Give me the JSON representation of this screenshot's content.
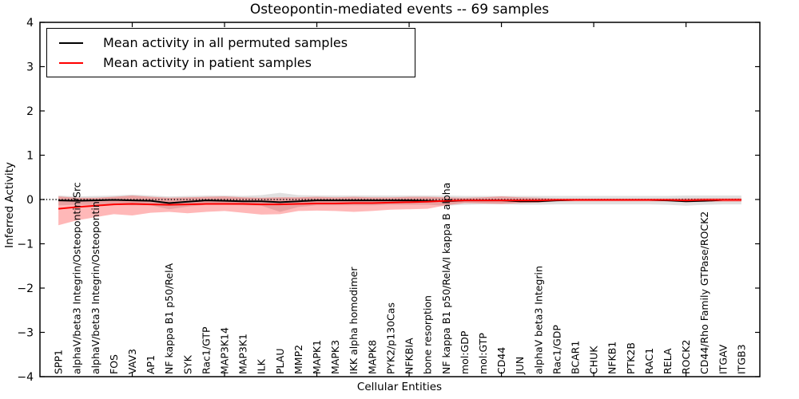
{
  "chart_data": {
    "type": "line",
    "title": "Osteopontin-mediated events -- 69 samples",
    "xlabel": "Cellular Entities",
    "ylabel": "Inferred Activity",
    "ylim": [
      -4,
      4
    ],
    "yticks": [
      -4,
      -3,
      -2,
      -1,
      0,
      1,
      2,
      3,
      4
    ],
    "ytick_labels": [
      "−4",
      "−3",
      "−2",
      "−1",
      "0",
      "1",
      "2",
      "3",
      "4"
    ],
    "xticks_every": 5,
    "grid": false,
    "legend_position": "upper left",
    "background_color": "#ffffff",
    "axis_color": "#000000",
    "zero_line": {
      "y": 0,
      "color": "#000000",
      "style": "dotted"
    },
    "categories": [
      "SPP1",
      "alphaV/beta3 Integrin/Osteopontin/Src",
      "alphaV/beta3 Integrin/Osteopontin",
      "FOS",
      "VAV3",
      "AP1",
      "NF kappa B1 p50/RelA",
      "SYK",
      "Rac1/GTP",
      "MAP3K14",
      "MAP3K1",
      "ILK",
      "PLAU",
      "MMP2",
      "MAPK1",
      "MAPK3",
      "IKK alpha homodimer",
      "MAPK8",
      "PYK2/p130Cas",
      "NFKBIA",
      "bone resorption",
      "NF kappa B1 p50/RelA/I kappa B alpha",
      "mol:GDP",
      "mol:GTP",
      "CD44",
      "JUN",
      "alphaV beta3 Integrin",
      "Rac1/GDP",
      "BCAR1",
      "CHUK",
      "NFKB1",
      "PTK2B",
      "RAC1",
      "RELA",
      "ROCK2",
      "CD44/Rho Family GTPase/ROCK2",
      "ITGAV",
      "ITGB3"
    ],
    "series": [
      {
        "name": "Mean activity in all permuted samples",
        "color": "#000000",
        "band_color": "#000000",
        "band_opacity": 0.12,
        "values": [
          -0.02,
          -0.03,
          -0.02,
          -0.01,
          -0.02,
          -0.03,
          -0.08,
          -0.05,
          -0.02,
          -0.03,
          -0.04,
          -0.04,
          -0.06,
          -0.04,
          -0.02,
          -0.02,
          -0.02,
          -0.02,
          -0.02,
          -0.02,
          -0.03,
          -0.04,
          -0.02,
          -0.02,
          -0.02,
          -0.04,
          -0.04,
          -0.02,
          -0.01,
          -0.01,
          -0.01,
          -0.01,
          -0.01,
          -0.02,
          -0.04,
          -0.03,
          -0.01,
          -0.01
        ],
        "band_upper": [
          0.09,
          0.07,
          0.08,
          0.09,
          0.11,
          0.09,
          0.07,
          0.08,
          0.09,
          0.09,
          0.08,
          0.1,
          0.15,
          0.1,
          0.09,
          0.09,
          0.09,
          0.09,
          0.09,
          0.09,
          0.09,
          0.09,
          0.08,
          0.08,
          0.08,
          0.08,
          0.08,
          0.08,
          0.08,
          0.08,
          0.08,
          0.08,
          0.08,
          0.08,
          0.09,
          0.09,
          0.09,
          0.09
        ],
        "band_lower": [
          -0.13,
          -0.12,
          -0.12,
          -0.12,
          -0.13,
          -0.13,
          -0.22,
          -0.16,
          -0.12,
          -0.12,
          -0.13,
          -0.14,
          -0.28,
          -0.17,
          -0.13,
          -0.13,
          -0.13,
          -0.13,
          -0.12,
          -0.12,
          -0.12,
          -0.14,
          -0.12,
          -0.11,
          -0.11,
          -0.12,
          -0.12,
          -0.11,
          -0.11,
          -0.11,
          -0.11,
          -0.11,
          -0.11,
          -0.12,
          -0.14,
          -0.12,
          -0.11,
          -0.11
        ]
      },
      {
        "name": "Mean activity in patient samples",
        "color": "#ff0000",
        "band_color": "#ff0000",
        "band_opacity": 0.28,
        "values": [
          -0.21,
          -0.17,
          -0.14,
          -0.11,
          -0.1,
          -0.11,
          -0.12,
          -0.11,
          -0.1,
          -0.1,
          -0.1,
          -0.11,
          -0.11,
          -0.1,
          -0.09,
          -0.09,
          -0.08,
          -0.08,
          -0.07,
          -0.06,
          -0.05,
          -0.03,
          -0.02,
          -0.02,
          -0.02,
          -0.02,
          -0.02,
          -0.01,
          -0.01,
          -0.01,
          -0.01,
          -0.01,
          -0.01,
          -0.01,
          -0.02,
          -0.01,
          -0.01,
          -0.01
        ],
        "band_upper": [
          0.07,
          0.04,
          0.04,
          0.06,
          0.09,
          0.06,
          0.04,
          0.05,
          0.06,
          0.07,
          0.05,
          0.04,
          0.05,
          0.05,
          0.06,
          0.05,
          0.06,
          0.05,
          0.05,
          0.06,
          0.06,
          0.05,
          0.04,
          0.05,
          0.07,
          0.05,
          0.04,
          0.02,
          0.02,
          0.02,
          0.02,
          0.02,
          0.02,
          0.02,
          0.03,
          0.03,
          0.03,
          0.03
        ],
        "band_lower": [
          -0.58,
          -0.47,
          -0.4,
          -0.33,
          -0.36,
          -0.3,
          -0.28,
          -0.31,
          -0.28,
          -0.26,
          -0.3,
          -0.34,
          -0.33,
          -0.26,
          -0.25,
          -0.26,
          -0.28,
          -0.26,
          -0.23,
          -0.22,
          -0.21,
          -0.13,
          -0.08,
          -0.09,
          -0.1,
          -0.08,
          -0.07,
          -0.04,
          -0.04,
          -0.04,
          -0.04,
          -0.04,
          -0.04,
          -0.04,
          -0.06,
          -0.05,
          -0.05,
          -0.05
        ]
      }
    ]
  }
}
